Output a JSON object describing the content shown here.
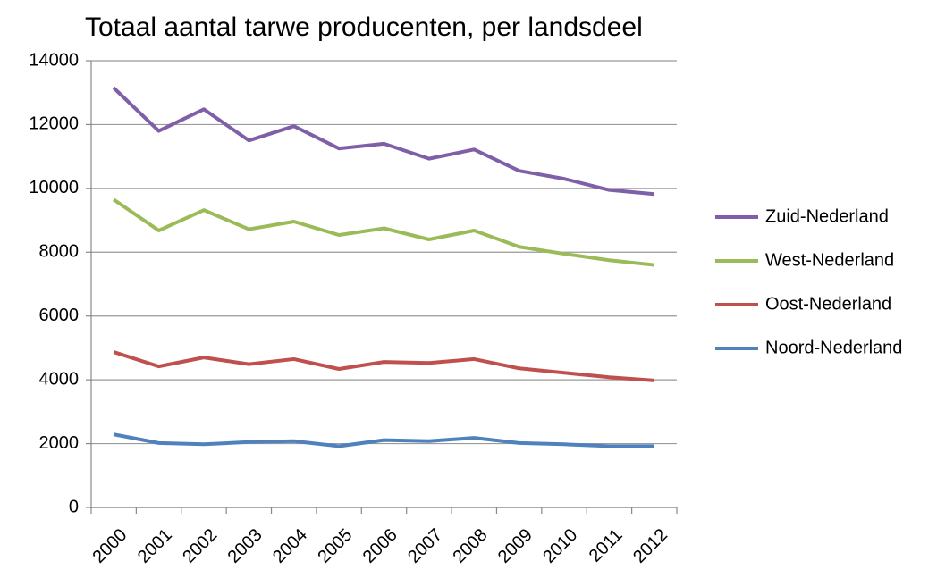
{
  "chart_data": {
    "type": "line",
    "title": "Totaal aantal tarwe producenten, per landsdeel",
    "categories": [
      "2000",
      "2001",
      "2002",
      "2003",
      "2004",
      "2005",
      "2006",
      "2007",
      "2008",
      "2009",
      "2010",
      "2011",
      "2012"
    ],
    "series": [
      {
        "name": "Zuid-Nederland",
        "color": "#7f5fa8",
        "values": [
          13150,
          11800,
          12480,
          11500,
          11950,
          11250,
          11400,
          10930,
          11220,
          10550,
          10300,
          9950,
          9820
        ]
      },
      {
        "name": "West-Nederland",
        "color": "#9bbb59",
        "values": [
          9650,
          8680,
          9320,
          8720,
          8960,
          8540,
          8750,
          8400,
          8680,
          8170,
          7950,
          7750,
          7600
        ]
      },
      {
        "name": "Oost-Nederland",
        "color": "#c0504d",
        "values": [
          4870,
          4420,
          4700,
          4490,
          4650,
          4340,
          4560,
          4530,
          4650,
          4360,
          4220,
          4080,
          3980
        ]
      },
      {
        "name": "Noord-Nederland",
        "color": "#4f81bd",
        "values": [
          2290,
          2020,
          1980,
          2050,
          2080,
          1920,
          2110,
          2080,
          2180,
          2020,
          1980,
          1920,
          1920
        ]
      }
    ],
    "ylim": [
      0,
      14000
    ],
    "yticks": [
      0,
      2000,
      4000,
      6000,
      8000,
      10000,
      12000,
      14000
    ],
    "grid": true,
    "legend": "right"
  }
}
